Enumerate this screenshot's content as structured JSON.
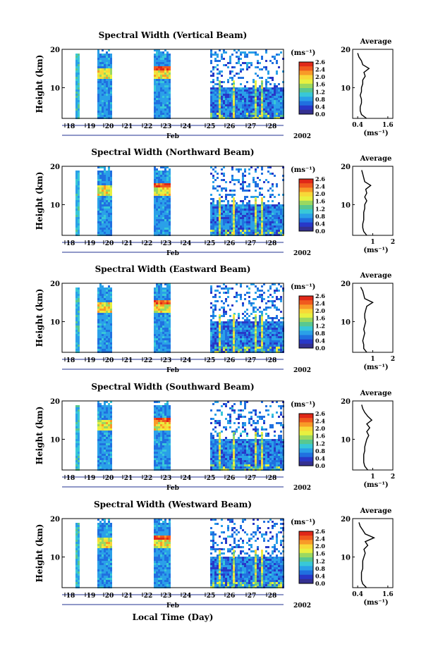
{
  "colorbar_unit": "(ms⁻¹)",
  "colorbar_ticks": [
    "2.6",
    "2.4",
    "2.0",
    "1.6",
    "1.2",
    "0.8",
    "0.4",
    "0.0"
  ],
  "colorbar_colors": [
    "#e02818",
    "#f05a1e",
    "#f89a28",
    "#f8d838",
    "#e8f040",
    "#9ad860",
    "#58c890",
    "#38c8d8",
    "#2aa0e8",
    "#2070e0",
    "#2838c8",
    "#343090"
  ],
  "average_title": "Average",
  "average_xlabel": "(ms⁻¹)",
  "height_label": "Height (km)",
  "month_label": "Feb",
  "year_label": "2002",
  "xlabel": "Local Time (Day)",
  "chart_data": [
    {
      "type": "heatmap",
      "title": "Spectral Width (Vertical Beam)",
      "days": [
        "18",
        "19",
        "20",
        "21",
        "22",
        "23",
        "24",
        "25",
        "26",
        "27",
        "28"
      ],
      "yticks": [
        "20",
        "10"
      ],
      "ylim": [
        2,
        20
      ],
      "avg_xticks": [
        "0.4",
        "1.6"
      ],
      "avg_xlim": [
        0.2,
        1.8
      ],
      "avg_profile": {
        "height": [
          2,
          3,
          4,
          5,
          6,
          7,
          8,
          9,
          10,
          11,
          12,
          13,
          14,
          15,
          16,
          17,
          18,
          19
        ],
        "value": [
          0.75,
          0.55,
          0.5,
          0.5,
          0.55,
          0.55,
          0.5,
          0.55,
          0.55,
          0.6,
          0.6,
          0.7,
          0.65,
          0.85,
          0.6,
          0.55,
          0.45,
          0.4
        ]
      }
    },
    {
      "type": "heatmap",
      "title": "Spectral Width (Northward Beam)",
      "days": [
        "18",
        "19",
        "20",
        "21",
        "22",
        "23",
        "24",
        "25",
        "26",
        "27",
        "28"
      ],
      "yticks": [
        "20",
        "10"
      ],
      "ylim": [
        2,
        20
      ],
      "avg_xticks": [
        "1",
        "2"
      ],
      "avg_xlim": [
        0,
        2
      ],
      "avg_profile": {
        "height": [
          2,
          3,
          4,
          5,
          6,
          7,
          8,
          9,
          10,
          11,
          12,
          13,
          14,
          15,
          16,
          17,
          18,
          19
        ],
        "value": [
          0.7,
          0.55,
          0.5,
          0.5,
          0.55,
          0.55,
          0.55,
          0.6,
          0.6,
          0.7,
          0.6,
          0.7,
          0.65,
          0.9,
          0.6,
          0.55,
          0.5,
          0.45
        ]
      }
    },
    {
      "type": "heatmap",
      "title": "Spectral Width (Eastward Beam)",
      "days": [
        "18",
        "19",
        "20",
        "21",
        "22",
        "23",
        "24",
        "25",
        "26",
        "27",
        "28"
      ],
      "yticks": [
        "20",
        "10"
      ],
      "ylim": [
        2,
        20
      ],
      "avg_xticks": [
        "1",
        "2"
      ],
      "avg_xlim": [
        0,
        2
      ],
      "avg_profile": {
        "height": [
          2,
          3,
          4,
          5,
          6,
          7,
          8,
          9,
          10,
          11,
          12,
          13,
          14,
          15,
          16,
          17,
          18,
          19
        ],
        "value": [
          0.7,
          0.55,
          0.55,
          0.5,
          0.55,
          0.6,
          0.55,
          0.6,
          0.65,
          0.6,
          0.6,
          0.65,
          0.7,
          1.0,
          0.6,
          0.55,
          0.5,
          0.4
        ]
      }
    },
    {
      "type": "heatmap",
      "title": "Spectral Width (Southward Beam)",
      "days": [
        "18",
        "19",
        "20",
        "21",
        "22",
        "23",
        "24",
        "25",
        "26",
        "27",
        "28"
      ],
      "yticks": [
        "20",
        "10"
      ],
      "ylim": [
        2,
        20
      ],
      "avg_xticks": [
        "1",
        "2"
      ],
      "avg_xlim": [
        0,
        2
      ],
      "avg_profile": {
        "height": [
          2,
          3,
          4,
          5,
          6,
          7,
          8,
          9,
          10,
          11,
          12,
          13,
          14,
          15,
          16,
          17,
          18,
          19
        ],
        "value": [
          0.75,
          0.6,
          0.55,
          0.55,
          0.55,
          0.6,
          0.6,
          0.65,
          0.7,
          0.8,
          0.7,
          0.85,
          0.7,
          0.95,
          0.75,
          0.6,
          0.5,
          0.45
        ]
      }
    },
    {
      "type": "heatmap",
      "title": "Spectral Width (Westward Beam)",
      "days": [
        "18",
        "19",
        "20",
        "21",
        "22",
        "23",
        "24",
        "25",
        "26",
        "27",
        "28"
      ],
      "yticks": [
        "20",
        "10"
      ],
      "ylim": [
        2,
        20
      ],
      "avg_xticks": [
        "0.4",
        "1.6"
      ],
      "avg_xlim": [
        0.2,
        1.8
      ],
      "avg_profile": {
        "height": [
          2,
          3,
          4,
          5,
          6,
          7,
          8,
          9,
          10,
          11,
          12,
          13,
          14,
          15,
          16,
          17,
          18,
          19
        ],
        "value": [
          0.75,
          0.6,
          0.55,
          0.55,
          0.55,
          0.6,
          0.6,
          0.6,
          0.65,
          0.7,
          0.65,
          0.8,
          0.7,
          1.05,
          0.7,
          0.6,
          0.5,
          0.45
        ]
      }
    }
  ]
}
